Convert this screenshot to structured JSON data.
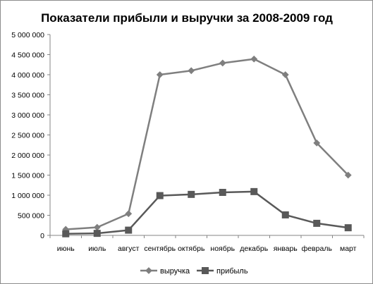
{
  "chart_data": {
    "type": "line",
    "title": "Показатели прибыли и выручки за 2008-2009 год",
    "categories": [
      "июнь",
      "июль",
      "август",
      "сентябрь",
      "октябрь",
      "ноябрь",
      "декабрь",
      "январь",
      "февраль",
      "март"
    ],
    "ylim": [
      0,
      5000000
    ],
    "yticks": [
      {
        "value": 0,
        "label": "0"
      },
      {
        "value": 500000,
        "label": "500 000"
      },
      {
        "value": 1000000,
        "label": "1 000 000"
      },
      {
        "value": 1500000,
        "label": "1 500 000"
      },
      {
        "value": 2000000,
        "label": "2 000 000"
      },
      {
        "value": 2500000,
        "label": "2 500 000"
      },
      {
        "value": 3000000,
        "label": "3 000 000"
      },
      {
        "value": 3500000,
        "label": "3 500 000"
      },
      {
        "value": 4000000,
        "label": "4 000 000"
      },
      {
        "value": 4500000,
        "label": "4 500 000"
      },
      {
        "value": 5000000,
        "label": "5 000 000"
      }
    ],
    "grid": false,
    "legend_position": "bottom",
    "series": [
      {
        "name": "выручка",
        "marker": "diamond",
        "color": "#7f7f7f",
        "values": [
          150000,
          200000,
          540000,
          4000000,
          4100000,
          4290000,
          4390000,
          4000000,
          2300000,
          1500000
        ]
      },
      {
        "name": "прибыль",
        "marker": "square",
        "color": "#595959",
        "values": [
          40000,
          50000,
          130000,
          990000,
          1020000,
          1070000,
          1090000,
          510000,
          300000,
          190000
        ]
      }
    ]
  }
}
